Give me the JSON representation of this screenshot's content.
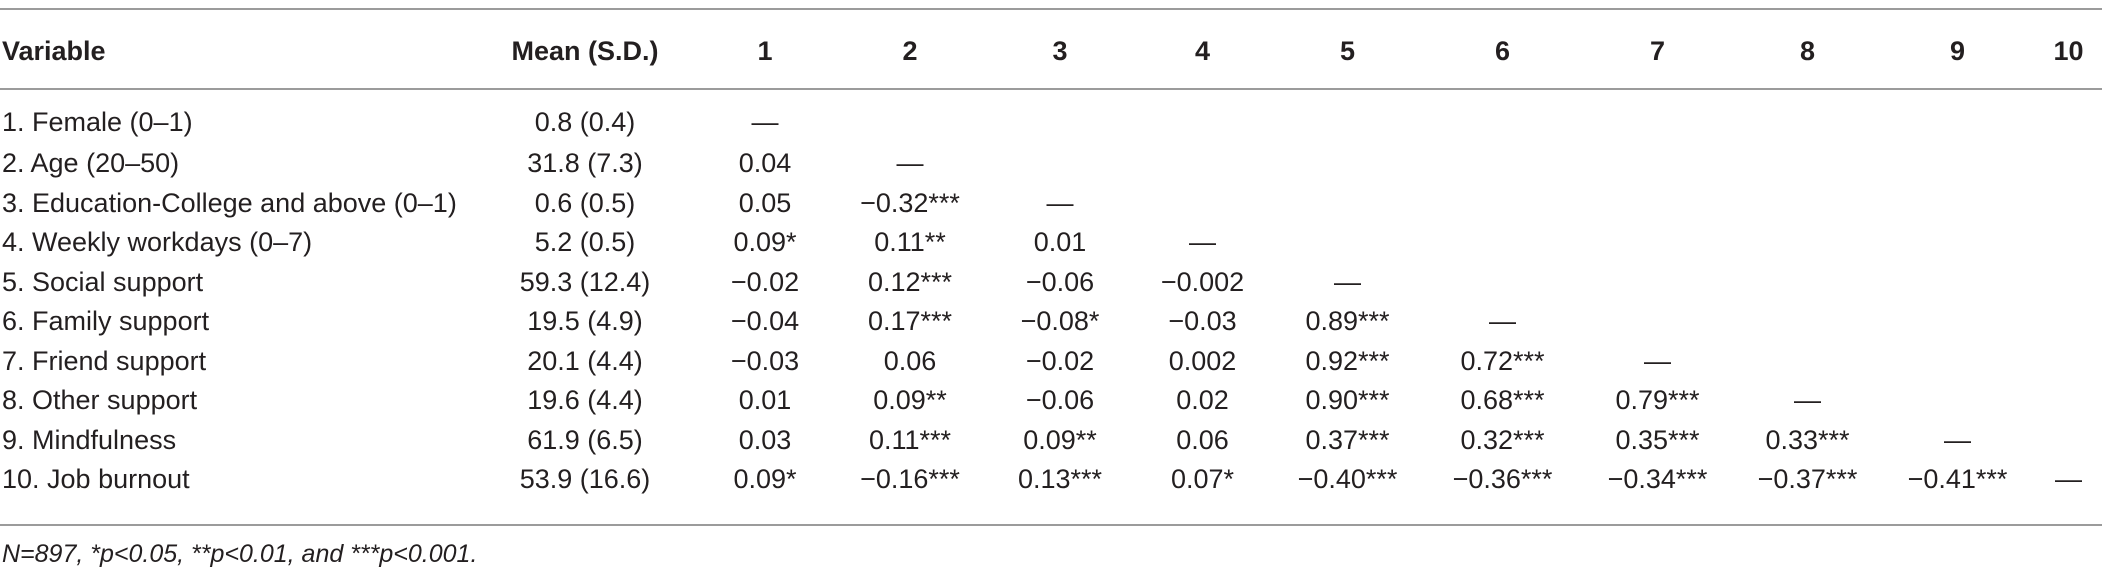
{
  "table": {
    "headers": [
      "Variable",
      "Mean (S.D.)",
      "1",
      "2",
      "3",
      "4",
      "5",
      "6",
      "7",
      "8",
      "9",
      "10"
    ],
    "rows": [
      {
        "variable": "1. Female (0–1)",
        "mean": "0.8 (0.4)",
        "cells": [
          "—",
          "",
          "",
          "",
          "",
          "",
          "",
          "",
          "",
          ""
        ]
      },
      {
        "variable": "2. Age (20–50)",
        "mean": "31.8 (7.3)",
        "cells": [
          "0.04",
          "—",
          "",
          "",
          "",
          "",
          "",
          "",
          "",
          ""
        ]
      },
      {
        "variable": "3. Education-College and above (0–1)",
        "mean": "0.6 (0.5)",
        "cells": [
          "0.05",
          "−0.32***",
          "—",
          "",
          "",
          "",
          "",
          "",
          "",
          ""
        ]
      },
      {
        "variable": "4. Weekly workdays (0–7)",
        "mean": "5.2 (0.5)",
        "cells": [
          "0.09*",
          "0.11**",
          "0.01",
          "—",
          "",
          "",
          "",
          "",
          "",
          ""
        ]
      },
      {
        "variable": "5. Social support",
        "mean": "59.3 (12.4)",
        "cells": [
          "−0.02",
          "0.12***",
          "−0.06",
          "−0.002",
          "—",
          "",
          "",
          "",
          "",
          ""
        ]
      },
      {
        "variable": "6. Family support",
        "mean": "19.5 (4.9)",
        "cells": [
          "−0.04",
          "0.17***",
          "−0.08*",
          "−0.03",
          "0.89***",
          "—",
          "",
          "",
          "",
          ""
        ]
      },
      {
        "variable": "7. Friend support",
        "mean": "20.1 (4.4)",
        "cells": [
          "−0.03",
          "0.06",
          "−0.02",
          "0.002",
          "0.92***",
          "0.72***",
          "—",
          "",
          "",
          ""
        ]
      },
      {
        "variable": "8. Other support",
        "mean": "19.6 (4.4)",
        "cells": [
          "0.01",
          "0.09**",
          "−0.06",
          "0.02",
          "0.90***",
          "0.68***",
          "0.79***",
          "—",
          "",
          ""
        ]
      },
      {
        "variable": "9. Mindfulness",
        "mean": "61.9 (6.5)",
        "cells": [
          "0.03",
          "0.11***",
          "0.09**",
          "0.06",
          "0.37***",
          "0.32***",
          "0.35***",
          "0.33***",
          "—",
          ""
        ]
      },
      {
        "variable": "10. Job burnout",
        "mean": "53.9 (16.6)",
        "cells": [
          "0.09*",
          "−0.16***",
          "0.13***",
          "0.07*",
          "−0.40***",
          "−0.36***",
          "−0.34***",
          "−0.37***",
          "−0.41***",
          "—"
        ]
      }
    ]
  },
  "footnote": "N=897, *p<0.05, **p<0.01, and ***p<0.001."
}
